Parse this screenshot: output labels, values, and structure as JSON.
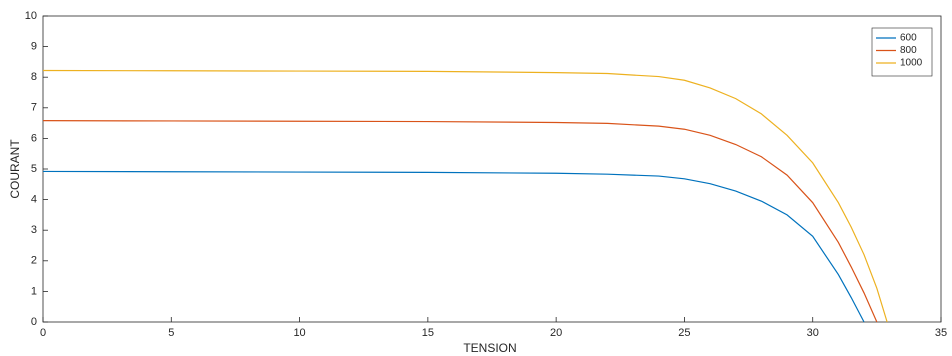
{
  "chart_data": {
    "type": "line",
    "xlabel": "TENSION",
    "ylabel": "COURANT",
    "x": [
      0,
      5,
      10,
      15,
      20,
      22,
      24,
      25,
      26,
      27,
      28,
      29,
      30,
      31,
      31.5,
      32,
      32.5,
      32.9
    ],
    "series": [
      {
        "name": "600",
        "color": "#0072bd",
        "values": [
          4.92,
          4.91,
          4.9,
          4.89,
          4.86,
          4.83,
          4.77,
          4.68,
          4.52,
          4.28,
          3.95,
          3.5,
          2.8,
          1.55,
          0.8,
          0,
          null,
          null
        ]
      },
      {
        "name": "800",
        "color": "#d95319",
        "values": [
          6.58,
          6.57,
          6.56,
          6.55,
          6.52,
          6.49,
          6.4,
          6.3,
          6.1,
          5.8,
          5.4,
          4.8,
          3.9,
          2.6,
          1.8,
          0.95,
          0,
          null
        ]
      },
      {
        "name": "1000",
        "color": "#edb120",
        "values": [
          8.22,
          8.21,
          8.2,
          8.19,
          8.15,
          8.12,
          8.02,
          7.9,
          7.65,
          7.3,
          6.8,
          6.1,
          5.2,
          3.9,
          3.1,
          2.2,
          1.1,
          0
        ]
      }
    ],
    "xlim": [
      0,
      35
    ],
    "xticks": [
      0,
      5,
      10,
      15,
      20,
      25,
      30,
      35
    ],
    "ylim": [
      0,
      10
    ],
    "yticks": [
      0,
      1,
      2,
      3,
      4,
      5,
      6,
      7,
      8,
      9,
      10
    ],
    "grid": false,
    "legend": "upper right"
  }
}
